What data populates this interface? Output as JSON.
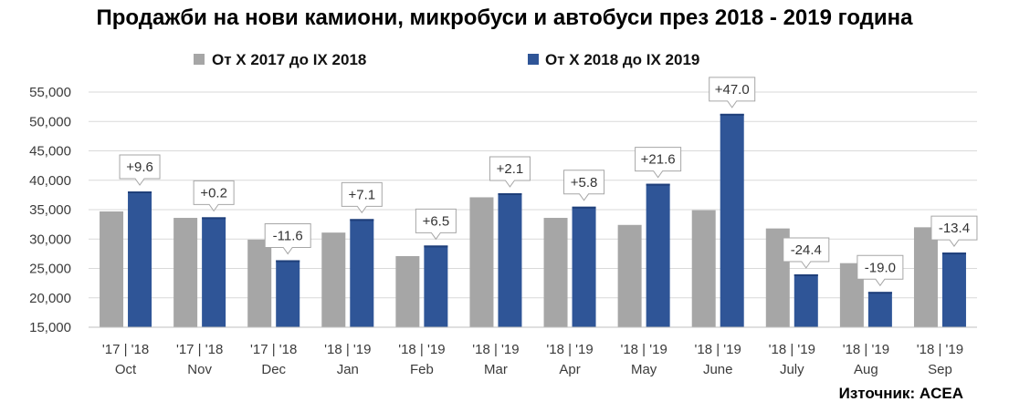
{
  "title": "Продажби на нови камиони, микробуси и автобуси през 2018 - 2019 година",
  "source": "Източник: ACEA",
  "colors": {
    "prev": "#a6a6a6",
    "curr": "#2f5597",
    "grid": "#d9d9d9",
    "curr_dark": "#1f3f7a"
  },
  "chart_data": {
    "type": "bar",
    "title": "Продажби на нови камиони, микробуси и автобуси през 2018 - 2019 година",
    "ylim": [
      15000,
      55000
    ],
    "yticks": [
      "15,000",
      "20,000",
      "25,000",
      "30,000",
      "35,000",
      "40,000",
      "45,000",
      "50,000",
      "55,000"
    ],
    "grid": true,
    "legend_position": "top",
    "categories": [
      "Oct",
      "Nov",
      "Dec",
      "Jan",
      "Feb",
      "Mar",
      "Apr",
      "May",
      "June",
      "July",
      "Aug",
      "Sep"
    ],
    "year_labels": [
      "'17 | '18",
      "'17 | '18",
      "'17 | '18",
      "'18 | '19",
      "'18 | '19",
      "'18 | '19",
      "'18 | '19",
      "'18 | '19",
      "'18 | '19",
      "'18 | '19",
      "'18 | '19",
      "'18 | '19"
    ],
    "series": [
      {
        "name": "От X 2017 до IX 2018",
        "values": [
          34700,
          33600,
          29900,
          31100,
          27100,
          37100,
          33600,
          32400,
          34900,
          31800,
          25900,
          32000
        ]
      },
      {
        "name": "От X 2018 до IX 2019",
        "values": [
          38100,
          33700,
          26400,
          33400,
          28900,
          37800,
          35500,
          39400,
          51300,
          24000,
          21000,
          27700
        ]
      }
    ],
    "change_labels": [
      "+9.6",
      "+0.2",
      "-11.6",
      "+7.1",
      "+6.5",
      "+2.1",
      "+5.8",
      "+21.6",
      "+47.0",
      "-24.4",
      "-19.0",
      "-13.4"
    ]
  }
}
